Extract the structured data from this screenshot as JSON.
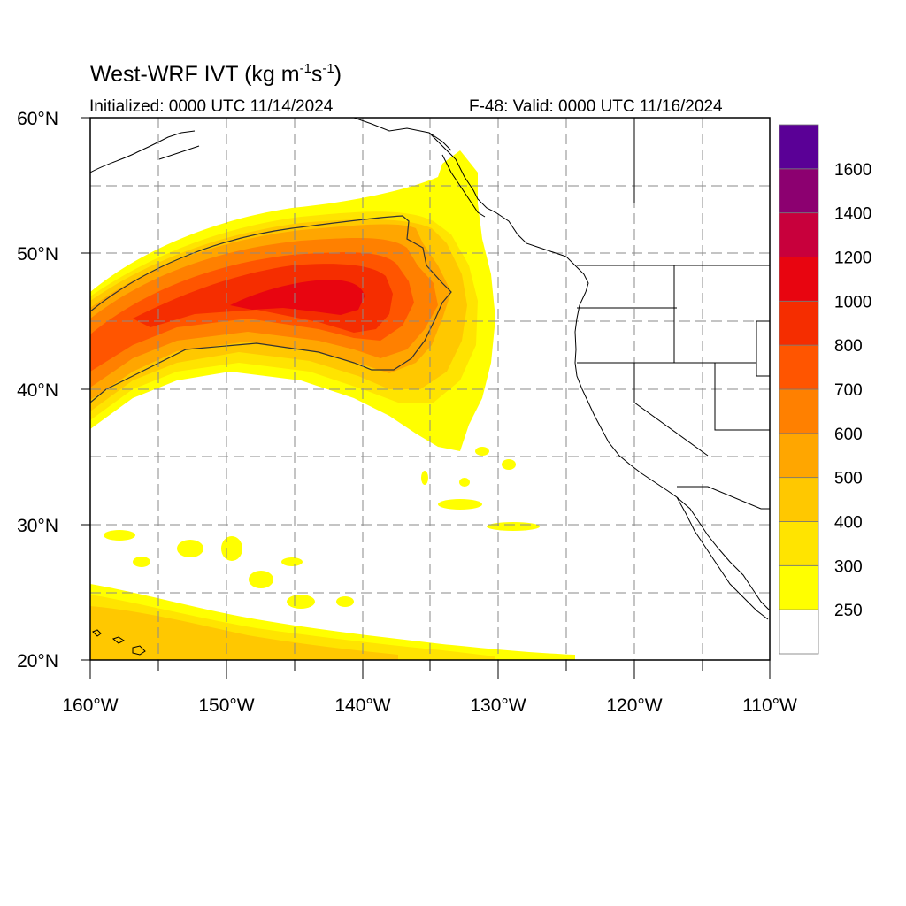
{
  "header": {
    "title_main": "West-WRF IVT (kg m",
    "title_sup1": "-1",
    "title_mid": "s",
    "title_sup2": "-1",
    "title_end": ")",
    "initialized": "Initialized: 0000 UTC 11/14/2024",
    "valid": "F-48: Valid: 0000 UTC 11/16/2024"
  },
  "map": {
    "lon_range": [
      -160,
      -110
    ],
    "lat_range": [
      20,
      60
    ],
    "lat_ticks": [
      {
        "value": 60,
        "label": "60°N"
      },
      {
        "value": 50,
        "label": "50°N"
      },
      {
        "value": 40,
        "label": "40°N"
      },
      {
        "value": 30,
        "label": "30°N"
      },
      {
        "value": 20,
        "label": "20°N"
      }
    ],
    "lon_ticks": [
      {
        "value": -160,
        "label": "160°W"
      },
      {
        "value": -150,
        "label": "150°W"
      },
      {
        "value": -140,
        "label": "140°W"
      },
      {
        "value": -130,
        "label": "130°W"
      },
      {
        "value": -120,
        "label": "120°W"
      },
      {
        "value": -110,
        "label": "110°W"
      }
    ],
    "gridlines": "dashed every 5°",
    "contour_level": 500
  },
  "colorbar": {
    "levels": [
      {
        "label": "",
        "color": "#ffffff"
      },
      {
        "label": "250",
        "color": "#ffff00"
      },
      {
        "label": "300",
        "color": "#ffe400"
      },
      {
        "label": "400",
        "color": "#ffc800"
      },
      {
        "label": "500",
        "color": "#ffa600"
      },
      {
        "label": "600",
        "color": "#ff8000"
      },
      {
        "label": "700",
        "color": "#ff5500"
      },
      {
        "label": "800",
        "color": "#f52d00"
      },
      {
        "label": "1000",
        "color": "#e80510"
      },
      {
        "label": "1200",
        "color": "#c8003c"
      },
      {
        "label": "1400",
        "color": "#8c0070"
      },
      {
        "label": "1600",
        "color": "#5a0096"
      }
    ]
  }
}
